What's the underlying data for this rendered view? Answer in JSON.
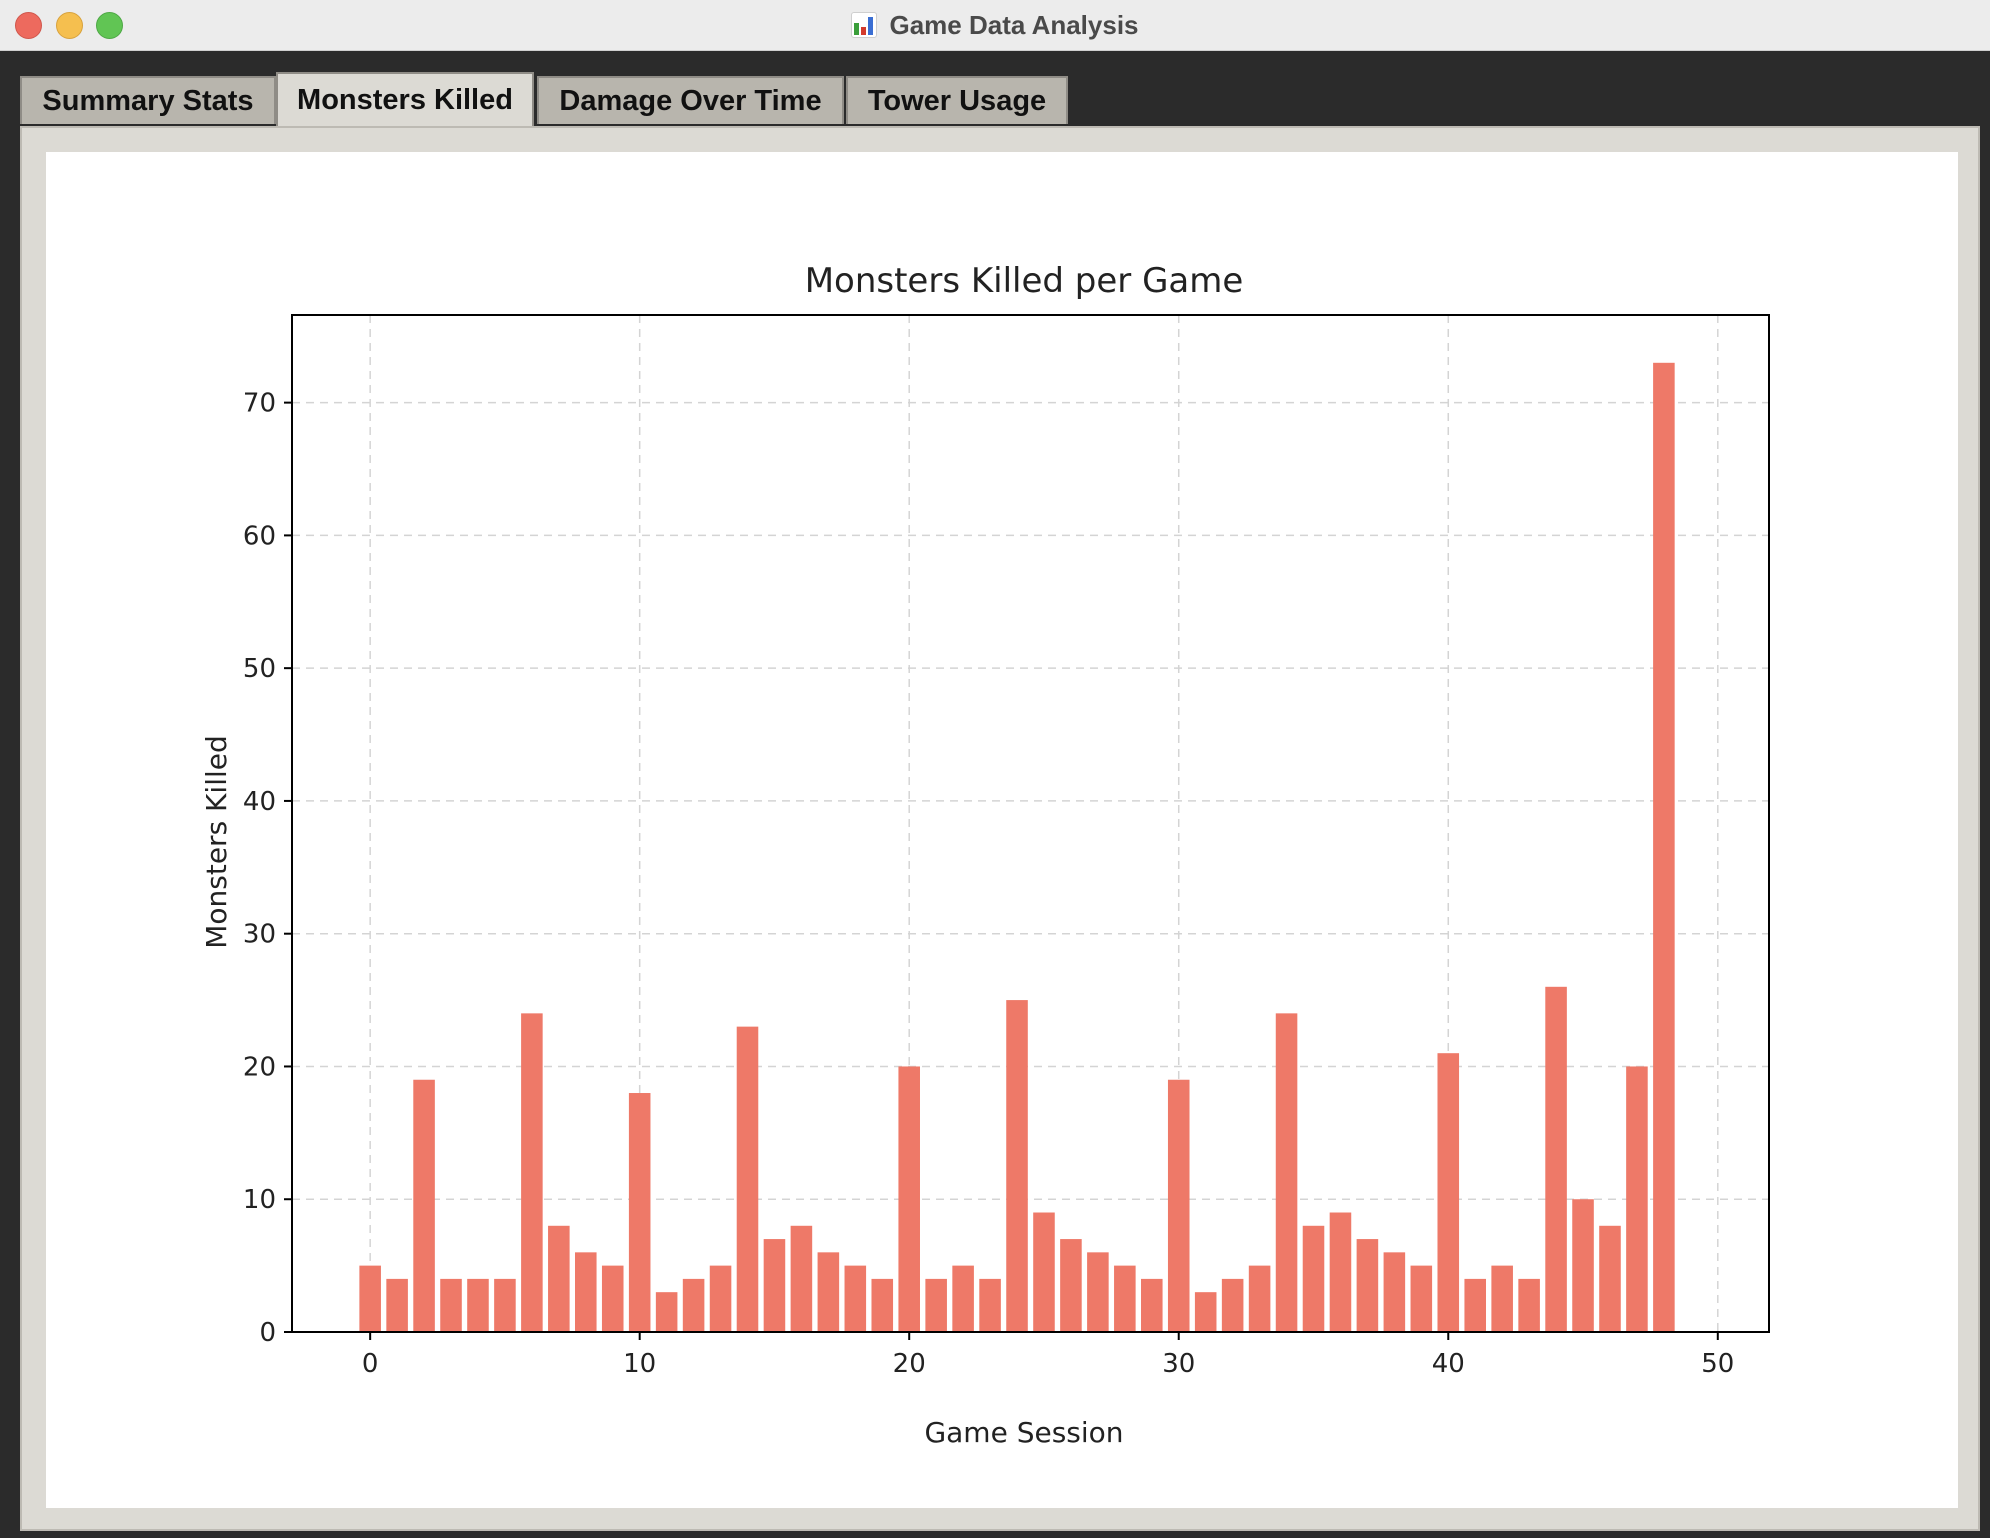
{
  "window": {
    "title": "Game Data Analysis"
  },
  "icons": {
    "app": "bar-chart-icon"
  },
  "tabs": [
    {
      "label": "Summary Stats",
      "active": false
    },
    {
      "label": "Monsters Killed",
      "active": true
    },
    {
      "label": "Damage Over Time",
      "active": false
    },
    {
      "label": "Tower Usage",
      "active": false
    }
  ],
  "colors": {
    "bar": "#ee7968",
    "active_tab": "#dcdad4",
    "inactive_tab": "#b8b5ad"
  },
  "chart_data": {
    "type": "bar",
    "title": "Monsters Killed per Game",
    "xlabel": "Game Session",
    "ylabel": "Monsters Killed",
    "x": [
      0,
      1,
      2,
      3,
      4,
      5,
      6,
      7,
      8,
      9,
      10,
      11,
      12,
      13,
      14,
      15,
      16,
      17,
      18,
      19,
      20,
      21,
      22,
      23,
      24,
      25,
      26,
      27,
      28,
      29,
      30,
      31,
      32,
      33,
      34,
      35,
      36,
      37,
      38,
      39,
      40,
      41,
      42,
      43,
      44,
      45,
      46,
      47,
      48
    ],
    "values": [
      5,
      4,
      19,
      4,
      4,
      4,
      24,
      8,
      6,
      5,
      18,
      3,
      4,
      5,
      23,
      7,
      8,
      6,
      5,
      4,
      20,
      4,
      5,
      4,
      25,
      9,
      7,
      6,
      5,
      4,
      19,
      3,
      4,
      5,
      24,
      8,
      9,
      7,
      6,
      5,
      21,
      4,
      5,
      4,
      26,
      10,
      8,
      20,
      73
    ],
    "xlim": [
      -2.9,
      51.9
    ],
    "ylim": [
      0,
      76.6
    ],
    "xticks": [
      0,
      10,
      20,
      30,
      40,
      50
    ],
    "yticks": [
      0,
      10,
      20,
      30,
      40,
      50,
      60,
      70
    ],
    "grid": true
  }
}
